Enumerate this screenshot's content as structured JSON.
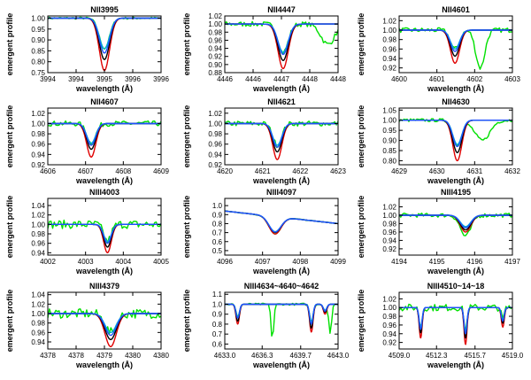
{
  "figure": {
    "ylabel": "emergent profile",
    "xlabel": "wavelength (Å)"
  },
  "series_colors": {
    "observed": "#00e000",
    "model_red": "#e00000",
    "model_black": "#000000",
    "model_cyan": "#00b0d0",
    "model_blue": "#2050ff"
  },
  "chart_data": [
    {
      "type": "line",
      "title": "NII3995",
      "xlim": [
        3994,
        3996
      ],
      "ylim": [
        0.75,
        1.01
      ],
      "xticks": [
        3994,
        3994.5,
        3995,
        3995.5,
        3996
      ],
      "xticklabels": [
        "3994",
        "3994",
        "3995",
        "3996",
        "3996"
      ],
      "yticks": [
        0.75,
        0.8,
        0.85,
        0.9,
        0.95,
        1.0
      ],
      "yticklabels": [
        "0.75",
        "0.80",
        "0.85",
        "0.90",
        "0.95",
        "1.00"
      ],
      "lines": [
        {
          "center": 3995.0,
          "width": 0.09,
          "depths": {
            "red": 0.24,
            "black": 0.19,
            "cyan": 0.14,
            "blue": 0.16
          }
        }
      ],
      "obs_noise": 0.005
    },
    {
      "type": "line",
      "title": "NII4447",
      "xlim": [
        4446,
        4448
      ],
      "ylim": [
        0.88,
        1.02
      ],
      "xticks": [
        4446,
        4446.5,
        4447,
        4447.5,
        4448
      ],
      "xticklabels": [
        "4446",
        "4446",
        "4447",
        "4448",
        "4448"
      ],
      "yticks": [
        0.88,
        0.9,
        0.92,
        0.94,
        0.96,
        0.98,
        1.0,
        1.02
      ],
      "yticklabels": [
        "0.88",
        "0.90",
        "0.92",
        "0.94",
        "0.96",
        "0.98",
        "1.00",
        "1.02"
      ],
      "lines": [
        {
          "center": 4447.03,
          "width": 0.09,
          "depths": {
            "red": 0.11,
            "black": 0.09,
            "cyan": 0.07,
            "blue": 0.075
          }
        },
        {
          "center": 4447.82,
          "width": 0.12,
          "depths": {
            "red": 0,
            "black": 0,
            "cyan": 0,
            "blue": 0
          },
          "obs": 0.05
        }
      ],
      "obs_noise": 0.006
    },
    {
      "type": "line",
      "title": "NII4601",
      "xlim": [
        4600,
        4603
      ],
      "ylim": [
        0.91,
        1.03
      ],
      "xticks": [
        4600,
        4601,
        4602,
        4603
      ],
      "xticklabels": [
        "4600",
        "4601",
        "4602",
        "4603"
      ],
      "yticks": [
        0.92,
        0.94,
        0.96,
        0.98,
        1.0,
        1.02
      ],
      "yticklabels": [
        "0.92",
        "0.94",
        "0.96",
        "0.98",
        "1.00",
        "1.02"
      ],
      "lines": [
        {
          "center": 4601.48,
          "width": 0.12,
          "depths": {
            "red": 0.07,
            "black": 0.055,
            "cyan": 0.04,
            "blue": 0.045
          }
        },
        {
          "center": 4602.15,
          "width": 0.12,
          "depths": {
            "red": 0,
            "black": 0,
            "cyan": 0,
            "blue": 0
          },
          "obs": 0.08
        }
      ],
      "obs_noise": 0.005
    },
    {
      "type": "line",
      "title": "NII4607",
      "xlim": [
        4606,
        4609
      ],
      "ylim": [
        0.92,
        1.03
      ],
      "xticks": [
        4606,
        4607,
        4608,
        4609
      ],
      "xticklabels": [
        "4606",
        "4607",
        "4608",
        "4609"
      ],
      "yticks": [
        0.92,
        0.94,
        0.96,
        0.98,
        1.0,
        1.02
      ],
      "yticklabels": [
        "0.92",
        "0.94",
        "0.96",
        "0.98",
        "1.00",
        "1.02"
      ],
      "lines": [
        {
          "center": 4607.15,
          "width": 0.12,
          "depths": {
            "red": 0.065,
            "black": 0.05,
            "cyan": 0.038,
            "blue": 0.042
          }
        }
      ],
      "obs_noise": 0.005
    },
    {
      "type": "line",
      "title": "NII4621",
      "xlim": [
        4620,
        4623
      ],
      "ylim": [
        0.92,
        1.03
      ],
      "xticks": [
        4620,
        4621,
        4622,
        4623
      ],
      "xticklabels": [
        "4620",
        "4621",
        "4622",
        "4623"
      ],
      "yticks": [
        0.92,
        0.94,
        0.96,
        0.98,
        1.0,
        1.02
      ],
      "yticklabels": [
        "0.92",
        "0.94",
        "0.96",
        "0.98",
        "1.00",
        "1.02"
      ],
      "lines": [
        {
          "center": 4621.39,
          "width": 0.12,
          "depths": {
            "red": 0.07,
            "black": 0.055,
            "cyan": 0.042,
            "blue": 0.046
          }
        }
      ],
      "obs_noise": 0.005
    },
    {
      "type": "line",
      "title": "NII4630",
      "xlim": [
        4629,
        4632
      ],
      "ylim": [
        0.78,
        1.06
      ],
      "xticks": [
        4629,
        4630,
        4631,
        4632
      ],
      "xticklabels": [
        "4629",
        "4630",
        "4631",
        "4632"
      ],
      "yticks": [
        0.8,
        0.85,
        0.9,
        0.95,
        1.0,
        1.05
      ],
      "yticklabels": [
        "0.80",
        "0.85",
        "0.90",
        "0.95",
        "1.00",
        "1.05"
      ],
      "lines": [
        {
          "center": 4630.54,
          "width": 0.12,
          "depths": {
            "red": 0.2,
            "black": 0.16,
            "cyan": 0.12,
            "blue": 0.13
          }
        },
        {
          "center": 4631.2,
          "width": 0.2,
          "depths": {
            "red": 0,
            "black": 0,
            "cyan": 0,
            "blue": 0
          },
          "obs": 0.1
        }
      ],
      "obs_noise": 0.008
    },
    {
      "type": "line",
      "title": "NIII4003",
      "xlim": [
        4002,
        4005
      ],
      "ylim": [
        0.935,
        1.055
      ],
      "xticks": [
        4002,
        4003,
        4004,
        4005
      ],
      "xticklabels": [
        "4002",
        "4003",
        "4004",
        "4005"
      ],
      "yticks": [
        0.94,
        0.96,
        0.98,
        1.0,
        1.02,
        1.04
      ],
      "yticklabels": [
        "0.94",
        "0.96",
        "0.98",
        "1.00",
        "1.02",
        "1.04"
      ],
      "lines": [
        {
          "center": 4003.58,
          "width": 0.1,
          "depths": {
            "red": 0.06,
            "black": 0.048,
            "cyan": 0.036,
            "blue": 0.04
          }
        }
      ],
      "obs_noise": 0.009
    },
    {
      "type": "line",
      "title": "NIII4097",
      "xlim": [
        4096,
        4099
      ],
      "ylim": [
        0.45,
        1.08
      ],
      "xticks": [
        4096,
        4097,
        4098,
        4099
      ],
      "xticklabels": [
        "4096",
        "4097",
        "4098",
        "4099"
      ],
      "yticks": [
        0.5,
        0.6,
        0.7,
        0.8,
        0.9,
        1.0
      ],
      "yticklabels": [
        "0.5",
        "0.6",
        "0.7",
        "0.8",
        "0.9",
        "1.0"
      ],
      "lines": [
        {
          "center": 4097.33,
          "width": 0.16,
          "depths": {
            "red": 0.22,
            "black": 0.2,
            "cyan": 0.19,
            "blue": 0.195
          }
        }
      ],
      "continuum": [
        0.94,
        0.8
      ],
      "obs_noise": 0.004
    },
    {
      "type": "line",
      "title": "NIII4195",
      "xlim": [
        4194,
        4197
      ],
      "ylim": [
        0.905,
        1.04
      ],
      "xticks": [
        4194,
        4195,
        4196,
        4197
      ],
      "xticklabels": [
        "4194",
        "4195",
        "4196",
        "4197"
      ],
      "yticks": [
        0.92,
        0.94,
        0.96,
        0.98,
        1.0,
        1.02
      ],
      "yticklabels": [
        "0.92",
        "0.94",
        "0.96",
        "0.98",
        "1.00",
        "1.02"
      ],
      "lines": [
        {
          "center": 4195.76,
          "width": 0.14,
          "depths": {
            "red": 0.04,
            "black": 0.035,
            "cyan": 0.027,
            "blue": 0.03
          },
          "obs": 0.05
        }
      ],
      "obs_noise": 0.005
    },
    {
      "type": "line",
      "title": "NIII4379",
      "xlim": [
        4378,
        4380
      ],
      "ylim": [
        0.925,
        1.045
      ],
      "xticks": [
        4378,
        4378.5,
        4379,
        4379.5,
        4380
      ],
      "xticklabels": [
        "4378",
        "4378",
        "4379",
        "4380",
        "4380"
      ],
      "yticks": [
        0.94,
        0.96,
        0.98,
        1.0,
        1.02,
        1.04
      ],
      "yticklabels": [
        "0.94",
        "0.96",
        "0.98",
        "1.00",
        "1.02",
        "1.04"
      ],
      "lines": [
        {
          "center": 4379.11,
          "width": 0.1,
          "depths": {
            "red": 0.07,
            "black": 0.055,
            "cyan": 0.04,
            "blue": 0.046
          }
        }
      ],
      "obs_noise": 0.01
    },
    {
      "type": "line",
      "title": "NIII4634~4640~4642",
      "xlim": [
        4633,
        4643
      ],
      "ylim": [
        0.55,
        1.12
      ],
      "xticks": [
        4633,
        4636.3,
        4639.7,
        4643
      ],
      "xticklabels": [
        "4633.0",
        "4636.3",
        "4639.7",
        "4643.0"
      ],
      "yticks": [
        0.6,
        0.7,
        0.8,
        0.9,
        1.0,
        1.1
      ],
      "yticklabels": [
        "0.6",
        "0.7",
        "0.8",
        "0.9",
        "1.0",
        "1.1"
      ],
      "lines": [
        {
          "center": 4634.14,
          "width": 0.15,
          "depths": {
            "red": 0.2,
            "black": 0.17,
            "cyan": 0.13,
            "blue": 0.14
          }
        },
        {
          "center": 4640.64,
          "width": 0.15,
          "depths": {
            "red": 0.28,
            "black": 0.24,
            "cyan": 0.18,
            "blue": 0.2
          }
        },
        {
          "center": 4641.85,
          "width": 0.15,
          "depths": {
            "red": 0.1,
            "black": 0.08,
            "cyan": 0.06,
            "blue": 0.07
          }
        },
        {
          "center": 4637.2,
          "width": 0.12,
          "depths": {
            "red": 0,
            "black": 0,
            "cyan": 0,
            "blue": 0
          },
          "obs": 0.35
        },
        {
          "center": 4642.3,
          "width": 0.12,
          "depths": {
            "red": 0,
            "black": 0,
            "cyan": 0,
            "blue": 0
          },
          "obs": 0.3
        }
      ],
      "obs_noise": 0.01
    },
    {
      "type": "line",
      "title": "NIII4510~14~18",
      "xlim": [
        4509,
        4519
      ],
      "ylim": [
        0.905,
        1.035
      ],
      "xticks": [
        4509,
        4512.3,
        4515.7,
        4519
      ],
      "xticklabels": [
        "4509.0",
        "4512.3",
        "4515.7",
        "4519.0"
      ],
      "yticks": [
        0.92,
        0.94,
        0.96,
        0.98,
        1.0,
        1.02
      ],
      "yticklabels": [
        "0.92",
        "0.94",
        "0.96",
        "0.98",
        "1.00",
        "1.02"
      ],
      "lines": [
        {
          "center": 4510.9,
          "width": 0.13,
          "depths": {
            "red": 0.07,
            "black": 0.058,
            "cyan": 0.045,
            "blue": 0.05
          }
        },
        {
          "center": 4514.86,
          "width": 0.13,
          "depths": {
            "red": 0.085,
            "black": 0.07,
            "cyan": 0.055,
            "blue": 0.06
          }
        },
        {
          "center": 4518.15,
          "width": 0.13,
          "depths": {
            "red": 0.045,
            "black": 0.036,
            "cyan": 0.028,
            "blue": 0.031
          }
        }
      ],
      "obs_noise": 0.008
    }
  ]
}
